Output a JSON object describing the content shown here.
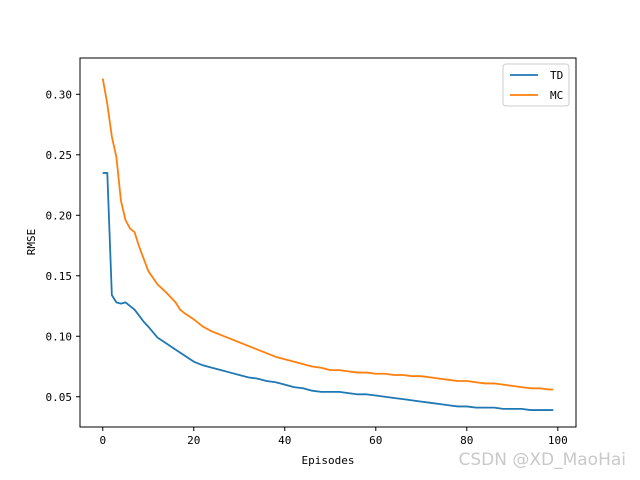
{
  "chart_data": {
    "type": "line",
    "title": "",
    "xlabel": "Episodes",
    "ylabel": "RMSE",
    "xlim": [
      -5,
      104
    ],
    "ylim": [
      0.025,
      0.33
    ],
    "xticks": [
      0,
      20,
      40,
      60,
      80,
      100
    ],
    "yticks": [
      0.05,
      0.1,
      0.15,
      0.2,
      0.25,
      0.3
    ],
    "ytick_labels": [
      "0.05",
      "0.10",
      "0.15",
      "0.20",
      "0.25",
      "0.30"
    ],
    "legend_position": "top-right",
    "grid": false,
    "colors": {
      "TD": "#1f77b4",
      "MC": "#ff7f0e"
    },
    "series": [
      {
        "name": "TD",
        "x": [
          0,
          1,
          2,
          3,
          4,
          5,
          6,
          7,
          8,
          9,
          10,
          12,
          14,
          16,
          18,
          20,
          22,
          24,
          26,
          28,
          30,
          32,
          34,
          36,
          38,
          40,
          42,
          44,
          46,
          48,
          50,
          52,
          54,
          56,
          58,
          60,
          62,
          64,
          66,
          68,
          70,
          72,
          74,
          76,
          78,
          80,
          82,
          84,
          86,
          88,
          90,
          92,
          94,
          96,
          98,
          99
        ],
        "values": [
          0.235,
          0.235,
          0.134,
          0.128,
          0.127,
          0.128,
          0.125,
          0.122,
          0.117,
          0.112,
          0.108,
          0.099,
          0.094,
          0.089,
          0.084,
          0.079,
          0.076,
          0.074,
          0.072,
          0.07,
          0.068,
          0.066,
          0.065,
          0.063,
          0.062,
          0.06,
          0.058,
          0.057,
          0.055,
          0.054,
          0.054,
          0.054,
          0.053,
          0.052,
          0.052,
          0.051,
          0.05,
          0.049,
          0.048,
          0.047,
          0.046,
          0.045,
          0.044,
          0.043,
          0.042,
          0.042,
          0.041,
          0.041,
          0.041,
          0.04,
          0.04,
          0.04,
          0.039,
          0.039,
          0.039,
          0.039
        ]
      },
      {
        "name": "MC",
        "x": [
          0,
          1,
          2,
          3,
          4,
          5,
          6,
          7,
          8,
          9,
          10,
          12,
          14,
          16,
          17,
          18,
          20,
          22,
          24,
          26,
          28,
          30,
          32,
          34,
          36,
          38,
          40,
          42,
          44,
          46,
          48,
          50,
          52,
          54,
          56,
          58,
          60,
          62,
          64,
          66,
          68,
          70,
          72,
          74,
          76,
          78,
          80,
          82,
          84,
          86,
          88,
          90,
          92,
          94,
          96,
          98,
          99
        ],
        "values": [
          0.313,
          0.292,
          0.265,
          0.248,
          0.212,
          0.196,
          0.189,
          0.186,
          0.174,
          0.164,
          0.154,
          0.143,
          0.136,
          0.128,
          0.122,
          0.119,
          0.114,
          0.108,
          0.104,
          0.101,
          0.098,
          0.095,
          0.092,
          0.089,
          0.086,
          0.083,
          0.081,
          0.079,
          0.077,
          0.075,
          0.074,
          0.072,
          0.072,
          0.071,
          0.07,
          0.07,
          0.069,
          0.069,
          0.068,
          0.068,
          0.067,
          0.067,
          0.066,
          0.065,
          0.064,
          0.063,
          0.063,
          0.062,
          0.061,
          0.061,
          0.06,
          0.059,
          0.058,
          0.057,
          0.057,
          0.056,
          0.056
        ]
      }
    ]
  },
  "watermark": "CSDN @XD_MaoHai"
}
